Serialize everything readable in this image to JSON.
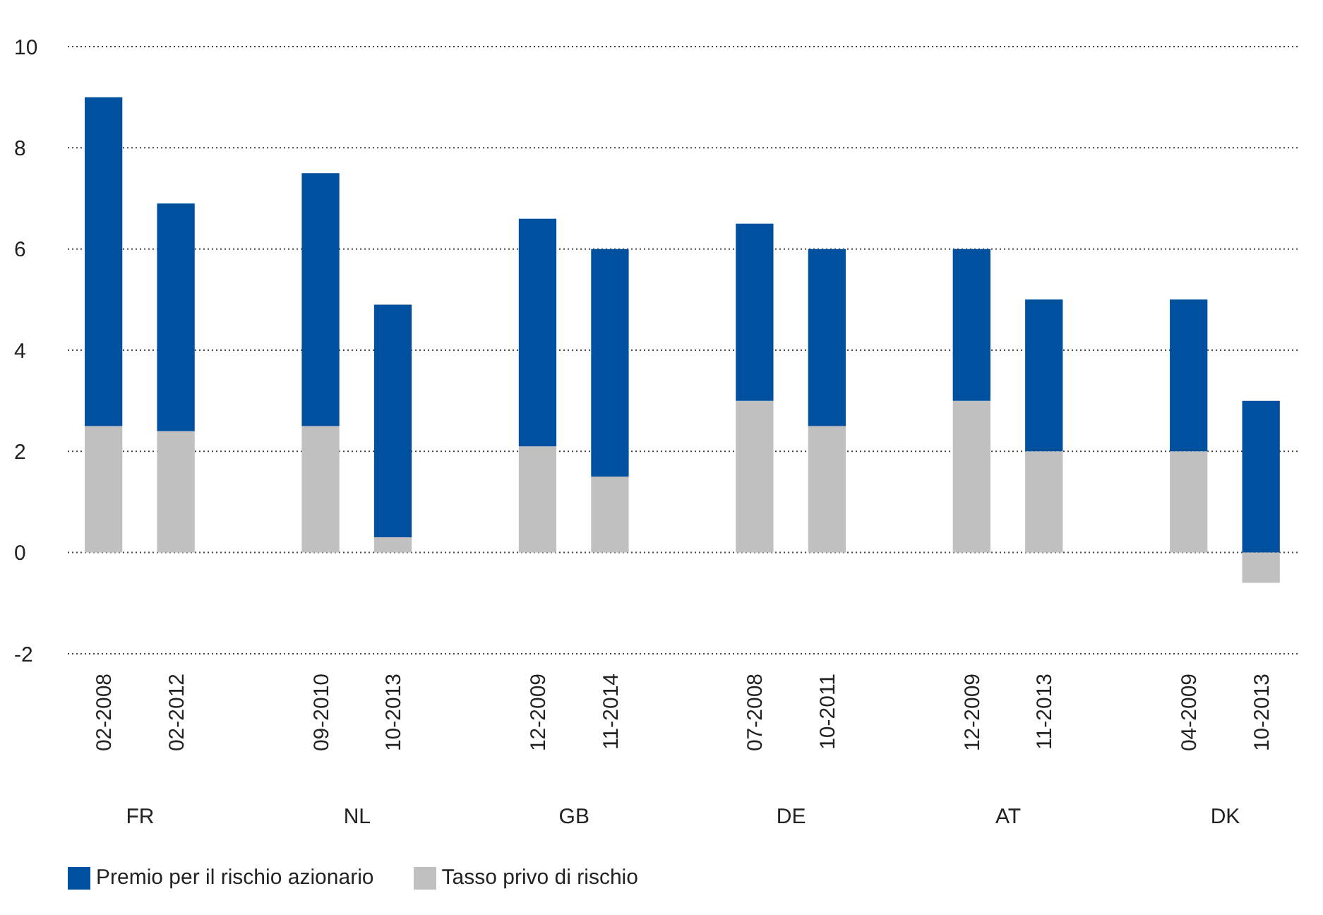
{
  "chart_data": {
    "type": "bar",
    "stacked": true,
    "categories": [
      "02-2008",
      "02-2012",
      null,
      "09-2010",
      "10-2013",
      null,
      "12-2009",
      "11-2014",
      null,
      "07-2008",
      "10-2011",
      null,
      "12-2009",
      "11-2013",
      null,
      "04-2009",
      "10-2013"
    ],
    "series": [
      {
        "name": "Tasso privo di rischio",
        "color": "#c0c0c0",
        "values": [
          2.5,
          2.4,
          null,
          2.5,
          0.3,
          null,
          2.1,
          1.5,
          null,
          3.0,
          2.5,
          null,
          3.0,
          2.0,
          null,
          2.0,
          -0.6
        ]
      },
      {
        "name": "Premio per il rischio azionario",
        "color": "#0050a0",
        "values": [
          6.5,
          4.5,
          null,
          5.0,
          4.6,
          null,
          4.5,
          4.5,
          null,
          3.5,
          3.5,
          null,
          3.0,
          3.0,
          null,
          3.0,
          3.0
        ]
      }
    ],
    "annotations": [
      "FR",
      "NL",
      "GB",
      "DE",
      "AT",
      "DK"
    ],
    "ylim": [
      -2,
      10
    ],
    "yticks": [
      -2,
      0,
      2,
      4,
      6,
      8,
      10
    ],
    "grid": "y",
    "legend": "bottom left"
  }
}
